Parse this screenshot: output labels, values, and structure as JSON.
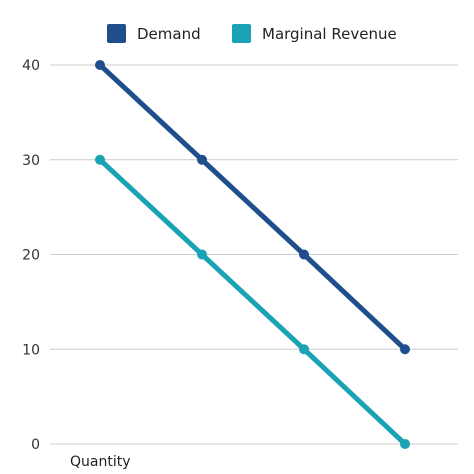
{
  "chart_data": {
    "type": "line",
    "categories": [
      "",
      "",
      "",
      ""
    ],
    "series": [
      {
        "name": "Demand",
        "values": [
          40,
          30,
          20,
          10
        ]
      },
      {
        "name": "Marginal Revenue",
        "values": [
          30,
          20,
          10,
          0
        ]
      }
    ],
    "xlabel": "Quantity",
    "ylabel": "",
    "ylim": [
      0,
      40
    ],
    "yticks": [
      "0",
      "10",
      "20",
      "30",
      "40"
    ],
    "grid": true,
    "legend_position": "top",
    "colors": {
      "Demand": "#1f4e8c",
      "Marginal Revenue": "#1aa3b4"
    }
  }
}
